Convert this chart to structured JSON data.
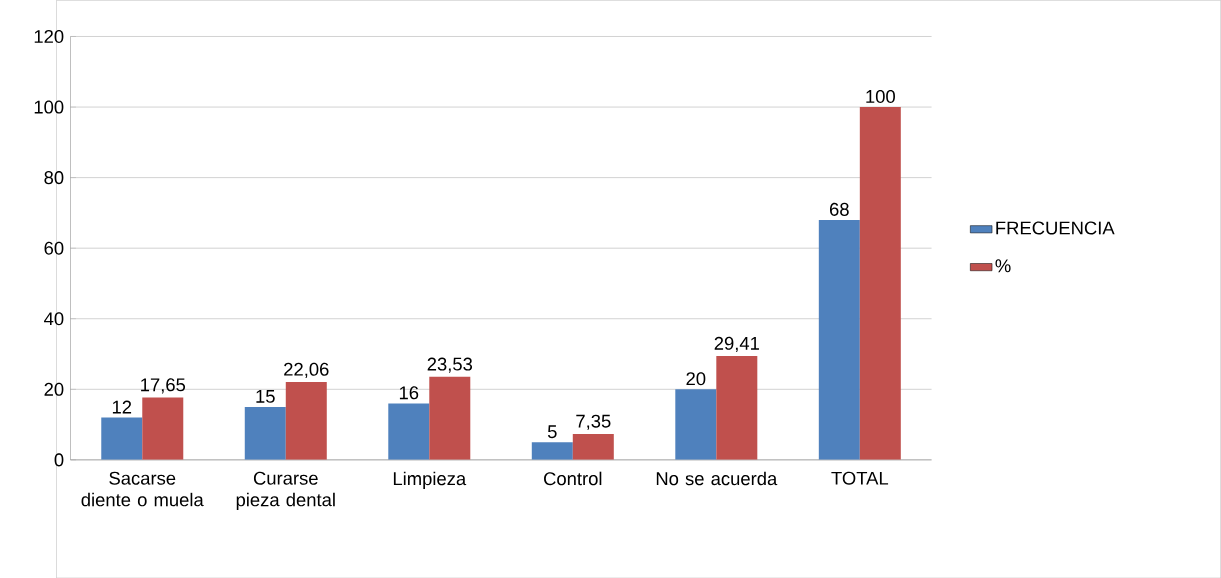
{
  "chart_data": {
    "type": "bar",
    "categories": [
      "Sacarse diente o muela",
      "Curarse pieza dental",
      "Limpieza",
      "Control",
      "No se acuerda",
      "TOTAL"
    ],
    "series": [
      {
        "name": "FRECUENCIA",
        "color": "#4f81bd",
        "values": [
          12,
          15,
          16,
          5,
          20,
          68
        ],
        "value_labels": [
          "12",
          "15",
          "16",
          "5",
          "20",
          "68"
        ]
      },
      {
        "name": "%",
        "color": "#c0504d",
        "values": [
          17.65,
          22.06,
          23.53,
          7.35,
          29.41,
          100
        ],
        "value_labels": [
          "17,65",
          "22,06",
          "23,53",
          "7,35",
          "29,41",
          "100"
        ]
      }
    ],
    "ylim": [
      0,
      120
    ],
    "yticks": [
      0,
      20,
      40,
      60,
      80,
      100,
      120
    ],
    "grid": "y",
    "legend": "right"
  }
}
